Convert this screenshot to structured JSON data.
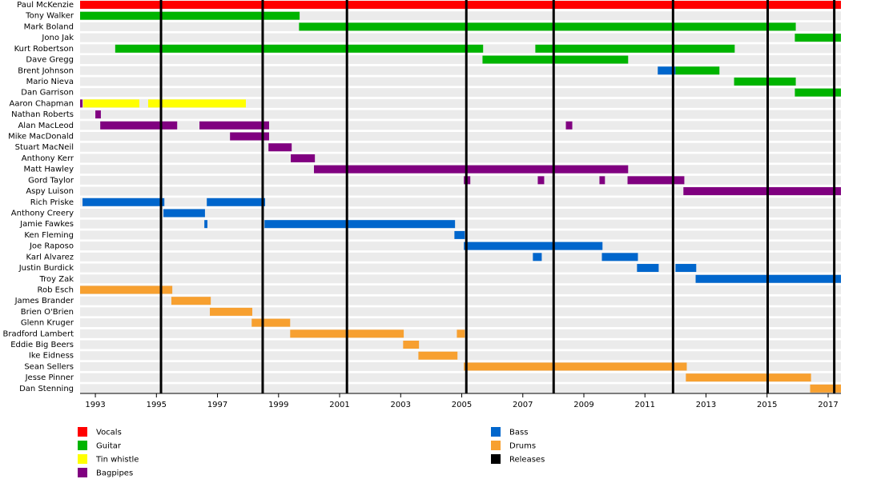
{
  "chart_data": {
    "type": "timeline",
    "categories": [
      "Paul McKenzie",
      "Tony Walker",
      "Mark Boland",
      "Jono Jak",
      "Kurt Robertson",
      "Dave Gregg",
      "Brent Johnson",
      "Mario Nieva",
      "Dan Garrison",
      "Aaron Chapman",
      "Nathan Roberts",
      "Alan MacLeod",
      "Mike MacDonald",
      "Stuart MacNeil",
      "Anthony Kerr",
      "Matt Hawley",
      "Gord Taylor",
      "Aspy Luison",
      "Rich Priske",
      "Anthony Creery",
      "Jamie Fawkes",
      "Ken Fleming",
      "Joe Raposo",
      "Karl Alvarez",
      "Justin Burdick",
      "Troy Zak",
      "Rob Esch",
      "James Brander",
      "Brien O'Brien",
      "Glenn Kruger",
      "Bradford Lambert",
      "Eddie Big Beers",
      "Ike Eidness",
      "Sean Sellers",
      "Jesse Pinner",
      "Dan Stenning"
    ],
    "series": [
      {
        "name": "Vocals",
        "color": "#ff0000",
        "values": [
          [
            [
              1992.5,
              2017.42
            ]
          ],
          [],
          [],
          [],
          [],
          [],
          [],
          [],
          [],
          [],
          [],
          [],
          [],
          [],
          [],
          [],
          [],
          [],
          [],
          [],
          [],
          [],
          [],
          [],
          [],
          [],
          [],
          [],
          [],
          [],
          [],
          [],
          [],
          [],
          [],
          []
        ]
      },
      {
        "name": "Guitar",
        "color": "#00b400",
        "values": [
          [],
          [
            [
              1992.5,
              1999.69
            ]
          ],
          [
            [
              1999.67,
              2015.94
            ]
          ],
          [
            [
              2015.91,
              2017.42
            ]
          ],
          [
            [
              1993.65,
              2005.7
            ],
            [
              2007.41,
              2013.94
            ]
          ],
          [
            [
              2005.68,
              2010.45
            ]
          ],
          [
            [
              2012.0,
              2013.44
            ]
          ],
          [
            [
              2013.92,
              2015.94
            ]
          ],
          [
            [
              2015.91,
              2017.42
            ]
          ],
          [],
          [],
          [],
          [],
          [],
          [],
          [],
          [],
          [],
          [],
          [],
          [],
          [],
          [],
          [],
          [],
          [],
          [],
          [],
          [],
          [],
          [],
          [],
          [],
          [],
          [],
          []
        ]
      },
      {
        "name": "Tin whistle",
        "color": "#ffff00",
        "values": [
          [],
          [],
          [],
          [],
          [],
          [],
          [],
          [],
          [],
          [
            [
              1992.6,
              1994.44
            ],
            [
              1994.73,
              1997.93
            ]
          ],
          [],
          [],
          [],
          [],
          [],
          [],
          [],
          [],
          [],
          [],
          [],
          [],
          [],
          [],
          [],
          [],
          [],
          [],
          [],
          [],
          [],
          [],
          [],
          [],
          [],
          []
        ]
      },
      {
        "name": "Bagpipes",
        "color": "#800080",
        "values": [
          [],
          [],
          [],
          [],
          [],
          [],
          [],
          [],
          [],
          [
            [
              1992.5,
              1992.58
            ]
          ],
          [
            [
              1993.0,
              1993.18
            ]
          ],
          [
            [
              1993.16,
              1995.68
            ],
            [
              1996.41,
              1998.69
            ],
            [
              2008.41,
              2008.62
            ]
          ],
          [
            [
              1997.41,
              1998.69
            ]
          ],
          [
            [
              1998.67,
              1999.43
            ]
          ],
          [
            [
              1999.4,
              2000.19
            ]
          ],
          [
            [
              2000.16,
              2010.45
            ]
          ],
          [
            [
              2005.07,
              2005.28
            ],
            [
              2007.49,
              2007.7
            ],
            [
              2009.51,
              2009.69
            ],
            [
              2010.43,
              2012.29
            ]
          ],
          [
            [
              2012.26,
              2017.42
            ]
          ],
          [],
          [],
          [],
          [],
          [],
          [],
          [],
          [],
          [],
          [],
          [],
          [],
          [],
          [],
          [],
          [],
          [],
          []
        ]
      },
      {
        "name": "Bass",
        "color": "#0066cc",
        "values": [
          [],
          [],
          [],
          [],
          [],
          [],
          [
            [
              2011.42,
              2012.0
            ]
          ],
          [],
          [],
          [],
          [],
          [],
          [],
          [],
          [],
          [],
          [],
          [],
          [
            [
              1992.58,
              1995.26
            ],
            [
              1996.65,
              1998.56
            ]
          ],
          [
            [
              1995.23,
              1996.59
            ]
          ],
          [
            [
              1996.57,
              1996.67
            ],
            [
              1998.54,
              2004.78
            ]
          ],
          [
            [
              2004.76,
              2005.1
            ]
          ],
          [
            [
              2005.07,
              2009.61
            ]
          ],
          [
            [
              2007.33,
              2007.62
            ],
            [
              2009.59,
              2010.77
            ]
          ],
          [
            [
              2010.74,
              2011.45
            ],
            [
              2012.0,
              2012.68
            ]
          ],
          [
            [
              2012.66,
              2017.42
            ]
          ],
          [],
          [],
          [],
          [],
          [],
          [],
          [],
          [],
          [],
          []
        ]
      },
      {
        "name": "Drums",
        "color": "#f7a030",
        "values": [
          [],
          [],
          [],
          [],
          [],
          [],
          [],
          [],
          [],
          [],
          [],
          [],
          [],
          [],
          [],
          [],
          [],
          [],
          [],
          [],
          [],
          [],
          [],
          [],
          [],
          [],
          [
            [
              1992.5,
              1995.52
            ]
          ],
          [
            [
              1995.49,
              1996.78
            ]
          ],
          [
            [
              1996.75,
              1998.14
            ]
          ],
          [
            [
              1998.12,
              1999.38
            ]
          ],
          [
            [
              1999.38,
              2003.1
            ],
            [
              2004.84,
              2005.1
            ]
          ],
          [
            [
              2003.08,
              2003.6
            ]
          ],
          [
            [
              2003.58,
              2004.86
            ]
          ],
          [
            [
              2005.07,
              2012.37
            ]
          ],
          [
            [
              2012.34,
              2016.44
            ]
          ],
          [
            [
              2016.41,
              2017.42
            ]
          ]
        ]
      }
    ],
    "releases": {
      "name": "Releases",
      "color": "#000000",
      "values": [
        1995.15,
        1998.48,
        2001.24,
        2005.15,
        2008.01,
        2011.92,
        2015.02,
        2017.2
      ]
    },
    "xlim": [
      1992.5,
      2017.42
    ],
    "xticks": [
      1993,
      1995,
      1997,
      1999,
      2001,
      2003,
      2005,
      2007,
      2009,
      2011,
      2013,
      2015,
      2017
    ]
  }
}
